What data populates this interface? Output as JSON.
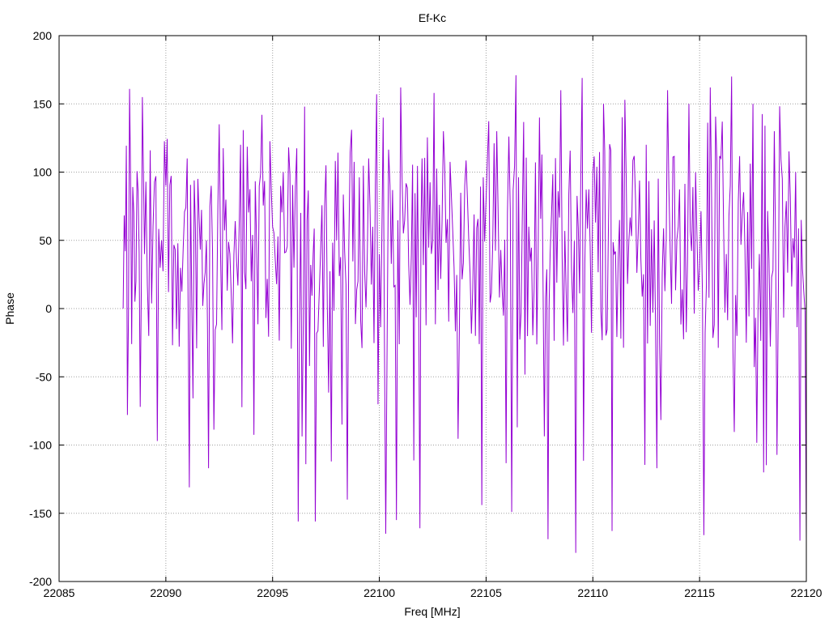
{
  "chart_data": {
    "type": "line",
    "title": "Ef-Kc",
    "xlabel": "Freq [MHz]",
    "ylabel": "Phase",
    "xlim": [
      22085,
      22120
    ],
    "ylim": [
      -200,
      200
    ],
    "x_ticks": [
      22085,
      22090,
      22095,
      22100,
      22105,
      22110,
      22115,
      22120
    ],
    "y_ticks": [
      -200,
      -150,
      -100,
      -50,
      0,
      50,
      100,
      150,
      200
    ],
    "grid": true,
    "grid_style": "dotted",
    "legend": "none",
    "series_color": "#9400d3",
    "series": [
      {
        "x": [
          22088.0,
          22088.1,
          22088.2,
          22088.3,
          22088.4,
          22088.5,
          22088.6,
          22088.7,
          22088.8,
          22088.9,
          22089.0,
          22089.2,
          22089.4,
          22089.6,
          22089.8,
          22090.0,
          22090.5,
          22091.0,
          22091.1,
          22091.5,
          22091.9,
          22092.0,
          22092.5,
          22093.0,
          22093.5,
          22094.0,
          22094.5,
          22095.0,
          22095.5,
          22096.0,
          22096.2,
          22096.5,
          22096.9,
          22097.0,
          22097.5,
          22098.0,
          22098.5,
          22098.7,
          22099.0,
          22099.5,
          22100.0,
          22100.3,
          22100.5,
          22100.8,
          22101.0,
          22101.5,
          22101.9,
          22102.0,
          22102.5,
          22103.0,
          22103.5,
          22104.0,
          22104.5,
          22104.8,
          22105.0,
          22105.5,
          22106.0,
          22106.2,
          22106.4,
          22107.0,
          22107.5,
          22107.9,
          22108.0,
          22108.5,
          22109.0,
          22109.2,
          22109.5,
          22110.0,
          22110.5,
          22110.9,
          22111.0,
          22111.5,
          22112.0,
          22112.5,
          22113.0,
          22113.5,
          22114.0,
          22114.5,
          22115.0,
          22115.2,
          22115.5,
          22116.0,
          22116.5,
          22117.0,
          22117.5,
          22117.8,
          22118.0,
          22118.5,
          22119.0,
          22119.5,
          22119.7,
          22120.0
        ],
        "y": [
          0,
          42,
          -78,
          161,
          -26,
          70,
          20,
          86,
          -72,
          155,
          40,
          -20,
          60,
          -97,
          50,
          90,
          -15,
          110,
          -131,
          95,
          50,
          -117,
          135,
          40,
          120,
          20,
          142,
          60,
          100,
          30,
          -156,
          148,
          40,
          -156,
          105,
          50,
          -140,
          131,
          20,
          110,
          40,
          -165,
          90,
          -155,
          162,
          40,
          -161,
          110,
          50,
          130,
          30,
          90,
          -20,
          -144,
          80,
          130,
          70,
          -149,
          171,
          60,
          140,
          -169,
          40,
          160,
          30,
          -179,
          169,
          100,
          150,
          -163,
          40,
          153,
          80,
          120,
          -117,
          160,
          60,
          150,
          30,
          -166,
          162,
          110,
          170,
          70,
          150,
          40,
          -120,
          130,
          60,
          100,
          -170,
          -169
        ]
      }
    ]
  }
}
